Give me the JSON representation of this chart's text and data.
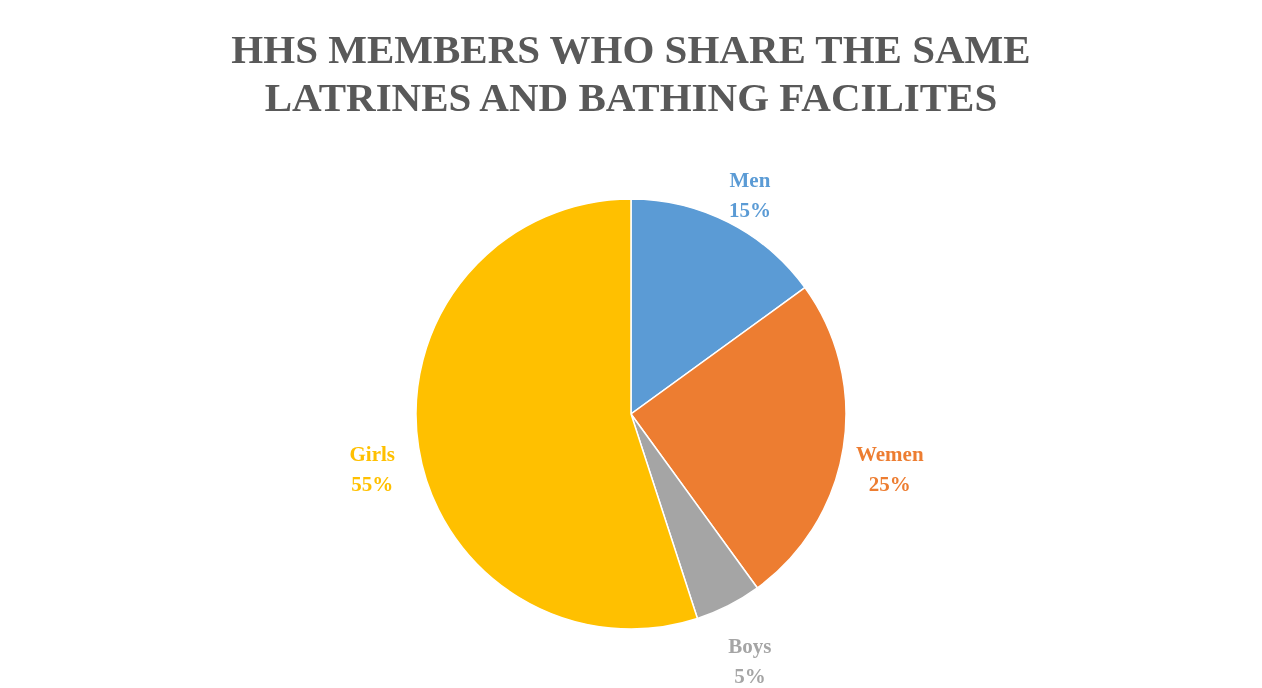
{
  "chart_data": {
    "type": "pie",
    "title": "HHS MEMBERS WHO SHARE THE SAME LATRINES AND BATHING FACILITES",
    "categories": [
      "Men",
      "Wemen",
      "Boys",
      "Girls"
    ],
    "values": [
      15,
      25,
      5,
      55
    ],
    "value_labels": [
      "15%",
      "25%",
      "5%",
      "55%"
    ],
    "colors": [
      "#5b9bd5",
      "#ed7d31",
      "#a5a5a5",
      "#ffc000"
    ],
    "legend": false
  }
}
